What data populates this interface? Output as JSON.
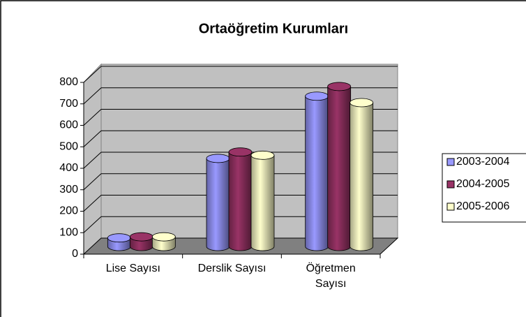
{
  "chart_data": {
    "type": "bar3d",
    "title": "Ortaöğretim Kurumları",
    "categories": [
      "Lise Sayısı",
      "Derslik Sayısı",
      "Öğretmen\nSayısı"
    ],
    "series": [
      {
        "name": "2003-2004",
        "color": "#9999ff",
        "values": [
          40,
          410,
          700
        ]
      },
      {
        "name": "2004-2005",
        "color": "#993366",
        "values": [
          45,
          440,
          745
        ]
      },
      {
        "name": "2005-2006",
        "color": "#ffffcc",
        "values": [
          45,
          425,
          670
        ]
      }
    ],
    "ylim": [
      0,
      800
    ],
    "yticks": [
      0,
      100,
      200,
      300,
      400,
      500,
      600,
      700,
      800
    ],
    "grid": true,
    "legend": "right"
  }
}
